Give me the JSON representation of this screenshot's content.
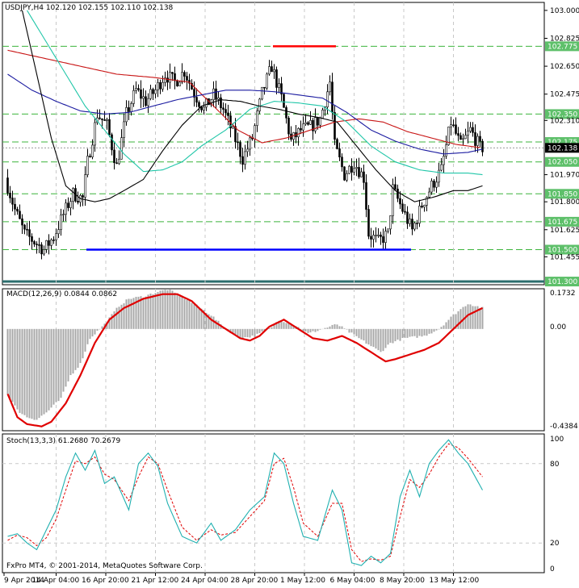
{
  "header": {
    "symbol_line": "USDJPY,H4  102.120 102.155 102.110 102.138",
    "copyright": "FxPro MT4, © 2001-2014, MetaQuotes Software Corp."
  },
  "colors": {
    "candle": "#000000",
    "ma_red": "#c81414",
    "ma_navy": "#1a1aa0",
    "ma_cyan": "#20c6a8",
    "ma_black": "#000000",
    "support_line": "#0000ff",
    "resistance_line": "#ff0000",
    "level_line": "#3cb43c",
    "macd_hist": "#a8a8a8",
    "macd_signal": "#e00000",
    "stoch_main": "#20b0b0",
    "stoch_signal": "#e00000"
  },
  "chart_data": [
    {
      "type": "candlestick",
      "panel": "main",
      "ylim": [
        101.28,
        103.05
      ],
      "y_ticks": [
        "103.000",
        "102.825",
        "102.650",
        "102.475",
        "102.310",
        "102.138",
        "101.970",
        "101.800",
        "101.625",
        "101.455"
      ],
      "level_labels": [
        "102.775",
        "102.350",
        "102.175",
        "102.050",
        "101.850",
        "101.675",
        "101.500",
        "101.300"
      ],
      "current_price": "102.138",
      "resistance": {
        "price": 102.775,
        "from_bar": 110,
        "to_bar": 136
      },
      "support": {
        "price": 101.5,
        "from_bar": 33,
        "to_bar": 167
      },
      "price_path": [
        [
          0,
          101.95
        ],
        [
          4,
          101.75
        ],
        [
          8,
          101.6
        ],
        [
          12,
          101.55
        ],
        [
          16,
          101.5
        ],
        [
          20,
          101.58
        ],
        [
          24,
          101.72
        ],
        [
          28,
          101.85
        ],
        [
          32,
          101.82
        ],
        [
          34,
          102.05
        ],
        [
          38,
          102.35
        ],
        [
          42,
          102.28
        ],
        [
          46,
          102.02
        ],
        [
          50,
          102.35
        ],
        [
          54,
          102.5
        ],
        [
          58,
          102.43
        ],
        [
          62,
          102.5
        ],
        [
          66,
          102.6
        ],
        [
          70,
          102.55
        ],
        [
          74,
          102.62
        ],
        [
          78,
          102.48
        ],
        [
          82,
          102.38
        ],
        [
          86,
          102.47
        ],
        [
          90,
          102.38
        ],
        [
          94,
          102.23
        ],
        [
          98,
          102.07
        ],
        [
          102,
          102.2
        ],
        [
          106,
          102.48
        ],
        [
          110,
          102.65
        ],
        [
          114,
          102.45
        ],
        [
          118,
          102.18
        ],
        [
          122,
          102.25
        ],
        [
          126,
          102.27
        ],
        [
          130,
          102.32
        ],
        [
          134,
          102.55
        ],
        [
          136,
          102.15
        ],
        [
          140,
          101.97
        ],
        [
          144,
          102.05
        ],
        [
          148,
          101.95
        ],
        [
          150,
          101.6
        ],
        [
          154,
          101.55
        ],
        [
          158,
          101.6
        ],
        [
          160,
          101.88
        ],
        [
          164,
          101.75
        ],
        [
          168,
          101.62
        ],
        [
          172,
          101.78
        ],
        [
          176,
          101.9
        ],
        [
          180,
          102.0
        ],
        [
          184,
          102.3
        ],
        [
          188,
          102.15
        ],
        [
          192,
          102.25
        ],
        [
          196,
          102.14
        ]
      ],
      "moving_averages": {
        "red": [
          [
            0,
            102.75
          ],
          [
            15,
            102.7
          ],
          [
            30,
            102.65
          ],
          [
            45,
            102.6
          ],
          [
            60,
            102.58
          ],
          [
            75,
            102.55
          ],
          [
            85,
            102.4
          ],
          [
            95,
            102.25
          ],
          [
            105,
            102.17
          ],
          [
            115,
            102.2
          ],
          [
            125,
            102.25
          ],
          [
            135,
            102.3
          ],
          [
            145,
            102.32
          ],
          [
            155,
            102.3
          ],
          [
            165,
            102.24
          ],
          [
            175,
            102.2
          ],
          [
            185,
            102.16
          ],
          [
            195,
            102.14
          ]
        ],
        "navy": [
          [
            0,
            102.6
          ],
          [
            10,
            102.5
          ],
          [
            20,
            102.43
          ],
          [
            30,
            102.37
          ],
          [
            40,
            102.35
          ],
          [
            50,
            102.36
          ],
          [
            60,
            102.4
          ],
          [
            70,
            102.44
          ],
          [
            80,
            102.47
          ],
          [
            90,
            102.5
          ],
          [
            100,
            102.5
          ],
          [
            110,
            102.49
          ],
          [
            120,
            102.47
          ],
          [
            130,
            102.45
          ],
          [
            140,
            102.36
          ],
          [
            150,
            102.25
          ],
          [
            160,
            102.18
          ],
          [
            170,
            102.13
          ],
          [
            180,
            102.1
          ],
          [
            190,
            102.11
          ],
          [
            196,
            102.13
          ]
        ],
        "cyan": [
          [
            8,
            103.0
          ],
          [
            16,
            102.8
          ],
          [
            24,
            102.6
          ],
          [
            32,
            102.4
          ],
          [
            40,
            102.25
          ],
          [
            48,
            102.1
          ],
          [
            56,
            101.99
          ],
          [
            64,
            102.0
          ],
          [
            72,
            102.05
          ],
          [
            80,
            102.15
          ],
          [
            90,
            102.25
          ],
          [
            100,
            102.38
          ],
          [
            110,
            102.43
          ],
          [
            120,
            102.42
          ],
          [
            130,
            102.4
          ],
          [
            140,
            102.3
          ],
          [
            150,
            102.15
          ],
          [
            160,
            102.05
          ],
          [
            170,
            102.0
          ],
          [
            180,
            101.98
          ],
          [
            190,
            101.98
          ],
          [
            196,
            101.97
          ]
        ],
        "black": [
          [
            6,
            103.0
          ],
          [
            12,
            102.6
          ],
          [
            18,
            102.2
          ],
          [
            24,
            101.9
          ],
          [
            30,
            101.82
          ],
          [
            36,
            101.8
          ],
          [
            42,
            101.82
          ],
          [
            48,
            101.87
          ],
          [
            56,
            101.94
          ],
          [
            64,
            102.12
          ],
          [
            72,
            102.28
          ],
          [
            80,
            102.4
          ],
          [
            88,
            102.44
          ],
          [
            96,
            102.43
          ],
          [
            104,
            102.4
          ],
          [
            112,
            102.38
          ],
          [
            120,
            102.35
          ],
          [
            128,
            102.33
          ],
          [
            136,
            102.3
          ],
          [
            144,
            102.15
          ],
          [
            152,
            102.0
          ],
          [
            160,
            101.87
          ],
          [
            168,
            101.8
          ],
          [
            176,
            101.83
          ],
          [
            184,
            101.87
          ],
          [
            190,
            101.87
          ],
          [
            196,
            101.9
          ]
        ]
      }
    },
    {
      "type": "bar",
      "panel": "macd",
      "name_line": "MACD(12,26,9) 0.0844 0.0862",
      "ylim": [
        -0.4384,
        0.1732
      ],
      "y_ticks": [
        "0.1732",
        "0.00",
        "-0.4384"
      ],
      "histogram_path": [
        [
          0,
          -0.28
        ],
        [
          4,
          -0.35
        ],
        [
          8,
          -0.38
        ],
        [
          12,
          -0.39
        ],
        [
          16,
          -0.36
        ],
        [
          22,
          -0.3
        ],
        [
          26,
          -0.2
        ],
        [
          30,
          -0.15
        ],
        [
          34,
          -0.04
        ],
        [
          40,
          0.02
        ],
        [
          46,
          0.1
        ],
        [
          50,
          0.13
        ],
        [
          56,
          0.14
        ],
        [
          62,
          0.16
        ],
        [
          66,
          0.17
        ],
        [
          72,
          0.14
        ],
        [
          78,
          0.1
        ],
        [
          84,
          0.06
        ],
        [
          90,
          0.0
        ],
        [
          96,
          -0.04
        ],
        [
          102,
          -0.03
        ],
        [
          108,
          0.0
        ],
        [
          112,
          0.04
        ],
        [
          118,
          0.02
        ],
        [
          124,
          -0.02
        ],
        [
          130,
          0.0
        ],
        [
          136,
          0.02
        ],
        [
          142,
          -0.02
        ],
        [
          148,
          -0.06
        ],
        [
          154,
          -0.1
        ],
        [
          158,
          -0.06
        ],
        [
          164,
          -0.04
        ],
        [
          172,
          -0.03
        ],
        [
          178,
          0.0
        ],
        [
          184,
          0.06
        ],
        [
          190,
          0.11
        ],
        [
          196,
          0.09
        ]
      ],
      "signal_path": [
        [
          0,
          -0.28
        ],
        [
          4,
          -0.38
        ],
        [
          8,
          -0.41
        ],
        [
          14,
          -0.42
        ],
        [
          18,
          -0.4
        ],
        [
          24,
          -0.32
        ],
        [
          30,
          -0.2
        ],
        [
          36,
          -0.06
        ],
        [
          42,
          0.04
        ],
        [
          48,
          0.09
        ],
        [
          56,
          0.13
        ],
        [
          64,
          0.15
        ],
        [
          70,
          0.15
        ],
        [
          76,
          0.12
        ],
        [
          84,
          0.04
        ],
        [
          90,
          0.0
        ],
        [
          96,
          -0.04
        ],
        [
          100,
          -0.05
        ],
        [
          104,
          -0.03
        ],
        [
          108,
          0.01
        ],
        [
          114,
          0.04
        ],
        [
          120,
          0.0
        ],
        [
          126,
          -0.04
        ],
        [
          132,
          -0.05
        ],
        [
          138,
          -0.03
        ],
        [
          144,
          -0.06
        ],
        [
          150,
          -0.1
        ],
        [
          156,
          -0.14
        ],
        [
          160,
          -0.13
        ],
        [
          166,
          -0.11
        ],
        [
          172,
          -0.09
        ],
        [
          178,
          -0.06
        ],
        [
          184,
          0.0
        ],
        [
          190,
          0.06
        ],
        [
          196,
          0.09
        ]
      ]
    },
    {
      "type": "line",
      "panel": "stochastic",
      "name_line": "Stoch(13,3,3) 61.2680 70.2679",
      "ylim": [
        0,
        100
      ],
      "y_ticks": [
        "100",
        "80",
        "20",
        "0"
      ],
      "main_path": [
        [
          0,
          25
        ],
        [
          4,
          27
        ],
        [
          8,
          20
        ],
        [
          12,
          15
        ],
        [
          16,
          30
        ],
        [
          20,
          45
        ],
        [
          24,
          70
        ],
        [
          28,
          88
        ],
        [
          32,
          75
        ],
        [
          36,
          90
        ],
        [
          40,
          65
        ],
        [
          44,
          70
        ],
        [
          50,
          45
        ],
        [
          54,
          80
        ],
        [
          58,
          88
        ],
        [
          62,
          78
        ],
        [
          66,
          50
        ],
        [
          72,
          25
        ],
        [
          78,
          20
        ],
        [
          84,
          35
        ],
        [
          88,
          22
        ],
        [
          94,
          30
        ],
        [
          100,
          45
        ],
        [
          106,
          55
        ],
        [
          110,
          88
        ],
        [
          114,
          80
        ],
        [
          118,
          50
        ],
        [
          122,
          25
        ],
        [
          128,
          22
        ],
        [
          134,
          60
        ],
        [
          138,
          45
        ],
        [
          142,
          5
        ],
        [
          146,
          3
        ],
        [
          150,
          10
        ],
        [
          154,
          5
        ],
        [
          158,
          12
        ],
        [
          162,
          55
        ],
        [
          166,
          75
        ],
        [
          170,
          55
        ],
        [
          174,
          80
        ],
        [
          178,
          90
        ],
        [
          182,
          98
        ],
        [
          186,
          88
        ],
        [
          190,
          80
        ],
        [
          196,
          60
        ]
      ],
      "signal_path": [
        [
          0,
          22
        ],
        [
          4,
          26
        ],
        [
          8,
          24
        ],
        [
          12,
          18
        ],
        [
          16,
          24
        ],
        [
          20,
          38
        ],
        [
          24,
          60
        ],
        [
          28,
          82
        ],
        [
          32,
          80
        ],
        [
          36,
          85
        ],
        [
          40,
          72
        ],
        [
          44,
          68
        ],
        [
          50,
          52
        ],
        [
          54,
          70
        ],
        [
          58,
          85
        ],
        [
          62,
          80
        ],
        [
          66,
          60
        ],
        [
          72,
          32
        ],
        [
          78,
          22
        ],
        [
          84,
          30
        ],
        [
          88,
          26
        ],
        [
          94,
          28
        ],
        [
          100,
          40
        ],
        [
          106,
          52
        ],
        [
          110,
          80
        ],
        [
          114,
          84
        ],
        [
          118,
          62
        ],
        [
          122,
          35
        ],
        [
          128,
          25
        ],
        [
          134,
          50
        ],
        [
          138,
          50
        ],
        [
          142,
          15
        ],
        [
          146,
          6
        ],
        [
          150,
          8
        ],
        [
          154,
          7
        ],
        [
          158,
          10
        ],
        [
          162,
          40
        ],
        [
          166,
          68
        ],
        [
          170,
          62
        ],
        [
          174,
          72
        ],
        [
          178,
          85
        ],
        [
          182,
          95
        ],
        [
          186,
          92
        ],
        [
          190,
          84
        ],
        [
          196,
          70
        ]
      ]
    }
  ],
  "x_axis": {
    "labels": [
      "9 Apr 2014",
      "14 Apr 04:00",
      "16 Apr 20:00",
      "21 Apr 12:00",
      "24 Apr 04:00",
      "28 Apr 20:00",
      "1 May 12:00",
      "6 May 04:00",
      "8 May 20:00",
      "13 May 12:00"
    ]
  }
}
